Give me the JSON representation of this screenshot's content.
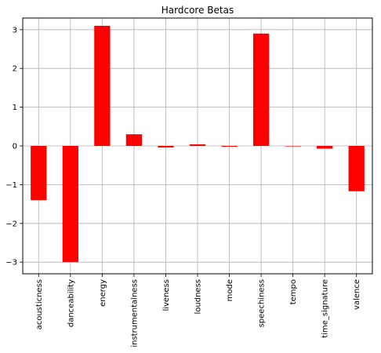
{
  "chart_data": {
    "type": "bar",
    "title": "Hardcore Betas",
    "xlabel": "",
    "ylabel": "",
    "categories": [
      "acousticness",
      "danceability",
      "energy",
      "instrumentalness",
      "liveness",
      "loudness",
      "mode",
      "speechiness",
      "tempo",
      "time_signature",
      "valence"
    ],
    "values": [
      -1.4,
      -3.0,
      3.1,
      0.3,
      -0.04,
      0.04,
      -0.02,
      2.9,
      0.0,
      -0.07,
      -1.17
    ],
    "ylim": [
      -3.3,
      3.3
    ],
    "yticks": [
      -3,
      -2,
      -1,
      0,
      1,
      2,
      3
    ],
    "ytick_labels": [
      "−3",
      "−2",
      "−1",
      "0",
      "1",
      "2",
      "3"
    ],
    "grid": true,
    "legend": "none",
    "bar_color": "#ff0000"
  }
}
